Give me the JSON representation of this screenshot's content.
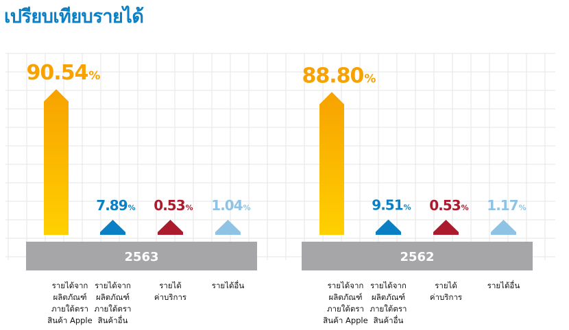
{
  "title": "เปรียบเทียบรายได้",
  "colors": {
    "apple_top": "#f7a200",
    "apple_bottom": "#ffd000",
    "other_products": "#0a7fc4",
    "services": "#ab1a2d",
    "other": "#8ec3e6",
    "year_band": "#a6a6a8",
    "grid": "#e6e6e6"
  },
  "chart_data": [
    {
      "type": "bar",
      "year": "2563",
      "categories": [
        "รายได้จาก\nผลิตภัณฑ์\nภายใต้ตรา\nสินค้า Apple",
        "รายได้จาก\nผลิตภัณฑ์\nภายใต้ตรา\nสินค้าอื่น",
        "รายได้\nค่าบริการ",
        "รายได้อื่น"
      ],
      "values": [
        90.54,
        7.89,
        0.53,
        1.04
      ],
      "value_labels": [
        "90.54",
        "7.89",
        "0.53",
        "1.04"
      ],
      "unit": "%"
    },
    {
      "type": "bar",
      "year": "2562",
      "categories": [
        "รายได้จาก\nผลิตภัณฑ์\nภายใต้ตรา\nสินค้า Apple",
        "รายได้จาก\nผลิตภัณฑ์\nภายใต้ตรา\nสินค้าอื่น",
        "รายได้\nค่าบริการ",
        "รายได้อื่น"
      ],
      "values": [
        88.8,
        9.51,
        0.53,
        1.17
      ],
      "value_labels": [
        "88.80",
        "9.51",
        "0.53",
        "1.17"
      ],
      "unit": "%"
    }
  ]
}
